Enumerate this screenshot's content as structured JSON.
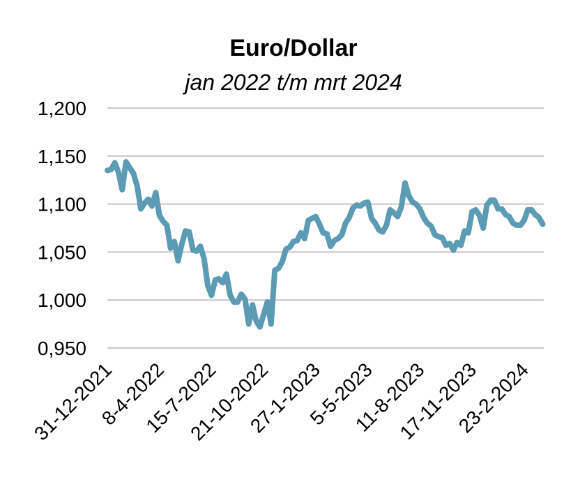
{
  "chart_data": {
    "type": "line",
    "title": "Euro/Dollar",
    "subtitle": "jan 2022 t/m mrt 2024",
    "xlabel": "",
    "ylabel": "",
    "ylim": [
      0.95,
      1.2
    ],
    "yticks": [
      0.95,
      1.0,
      1.05,
      1.1,
      1.15,
      1.2
    ],
    "ytick_labels": [
      "0,950",
      "1,000",
      "1,050",
      "1,100",
      "1,150",
      "1,200"
    ],
    "xlim": [
      "2021-12-31",
      "2024-03-31"
    ],
    "xticks": [
      "2021-12-31",
      "2022-04-08",
      "2022-07-15",
      "2022-10-21",
      "2023-01-27",
      "2023-05-05",
      "2023-08-11",
      "2023-11-17",
      "2024-02-23"
    ],
    "xtick_labels": [
      "31-12-2021",
      "8-4-2022",
      "15-7-2022",
      "21-10-2022",
      "27-1-2023",
      "5-5-2023",
      "11-8-2023",
      "17-11-2023",
      "23-2-2024"
    ],
    "grid": true,
    "line_color": "#5b9bb3",
    "series": [
      {
        "name": "",
        "x": [
          "2021-12-31",
          "2022-01-07",
          "2022-01-14",
          "2022-01-21",
          "2022-01-28",
          "2022-02-04",
          "2022-02-11",
          "2022-02-18",
          "2022-02-25",
          "2022-03-04",
          "2022-03-11",
          "2022-03-18",
          "2022-03-25",
          "2022-04-01",
          "2022-04-08",
          "2022-04-15",
          "2022-04-22",
          "2022-04-29",
          "2022-05-06",
          "2022-05-13",
          "2022-05-20",
          "2022-05-27",
          "2022-06-03",
          "2022-06-10",
          "2022-06-17",
          "2022-06-24",
          "2022-07-01",
          "2022-07-08",
          "2022-07-15",
          "2022-07-22",
          "2022-07-29",
          "2022-08-05",
          "2022-08-12",
          "2022-08-19",
          "2022-08-26",
          "2022-09-02",
          "2022-09-09",
          "2022-09-16",
          "2022-09-23",
          "2022-09-30",
          "2022-10-07",
          "2022-10-14",
          "2022-10-21",
          "2022-10-28",
          "2022-11-04",
          "2022-11-11",
          "2022-11-18",
          "2022-11-25",
          "2022-12-02",
          "2022-12-09",
          "2022-12-16",
          "2022-12-23",
          "2022-12-30",
          "2023-01-06",
          "2023-01-13",
          "2023-01-20",
          "2023-01-27",
          "2023-02-03",
          "2023-02-10",
          "2023-02-17",
          "2023-02-24",
          "2023-03-03",
          "2023-03-10",
          "2023-03-17",
          "2023-03-24",
          "2023-03-31",
          "2023-04-07",
          "2023-04-14",
          "2023-04-21",
          "2023-04-28",
          "2023-05-05",
          "2023-05-12",
          "2023-05-19",
          "2023-05-26",
          "2023-06-02",
          "2023-06-09",
          "2023-06-16",
          "2023-06-23",
          "2023-06-30",
          "2023-07-07",
          "2023-07-14",
          "2023-07-21",
          "2023-07-28",
          "2023-08-04",
          "2023-08-11",
          "2023-08-18",
          "2023-08-25",
          "2023-09-01",
          "2023-09-08",
          "2023-09-15",
          "2023-09-22",
          "2023-09-29",
          "2023-10-06",
          "2023-10-13",
          "2023-10-20",
          "2023-10-27",
          "2023-11-03",
          "2023-11-10",
          "2023-11-17",
          "2023-11-24",
          "2023-12-01",
          "2023-12-08",
          "2023-12-15",
          "2023-12-22",
          "2023-12-29",
          "2024-01-05",
          "2024-01-12",
          "2024-01-19",
          "2024-01-26",
          "2024-02-02",
          "2024-02-09",
          "2024-02-16",
          "2024-02-23",
          "2024-03-01",
          "2024-03-08",
          "2024-03-15",
          "2024-03-22",
          "2024-03-29"
        ],
        "y": [
          1.135,
          1.136,
          1.143,
          1.133,
          1.115,
          1.144,
          1.138,
          1.132,
          1.119,
          1.095,
          1.101,
          1.105,
          1.098,
          1.112,
          1.088,
          1.082,
          1.078,
          1.054,
          1.061,
          1.041,
          1.058,
          1.072,
          1.071,
          1.052,
          1.051,
          1.056,
          1.043,
          1.015,
          1.005,
          1.021,
          1.022,
          1.018,
          1.027,
          1.005,
          0.998,
          0.998,
          1.006,
          1.001,
          0.975,
          0.995,
          0.978,
          0.972,
          0.985,
          0.998,
          0.975,
          1.031,
          1.033,
          1.04,
          1.053,
          1.055,
          1.061,
          1.062,
          1.07,
          1.064,
          1.083,
          1.085,
          1.087,
          1.079,
          1.07,
          1.069,
          1.056,
          1.062,
          1.064,
          1.068,
          1.08,
          1.086,
          1.096,
          1.099,
          1.098,
          1.101,
          1.102,
          1.085,
          1.08,
          1.073,
          1.071,
          1.078,
          1.094,
          1.091,
          1.087,
          1.097,
          1.122,
          1.109,
          1.102,
          1.1,
          1.095,
          1.086,
          1.08,
          1.077,
          1.068,
          1.066,
          1.065,
          1.057,
          1.059,
          1.052,
          1.06,
          1.057,
          1.072,
          1.07,
          1.092,
          1.094,
          1.088,
          1.075,
          1.099,
          1.104,
          1.104,
          1.095,
          1.095,
          1.089,
          1.087,
          1.08,
          1.078,
          1.078,
          1.083,
          1.094,
          1.094,
          1.089,
          1.086,
          1.079
        ]
      }
    ]
  }
}
